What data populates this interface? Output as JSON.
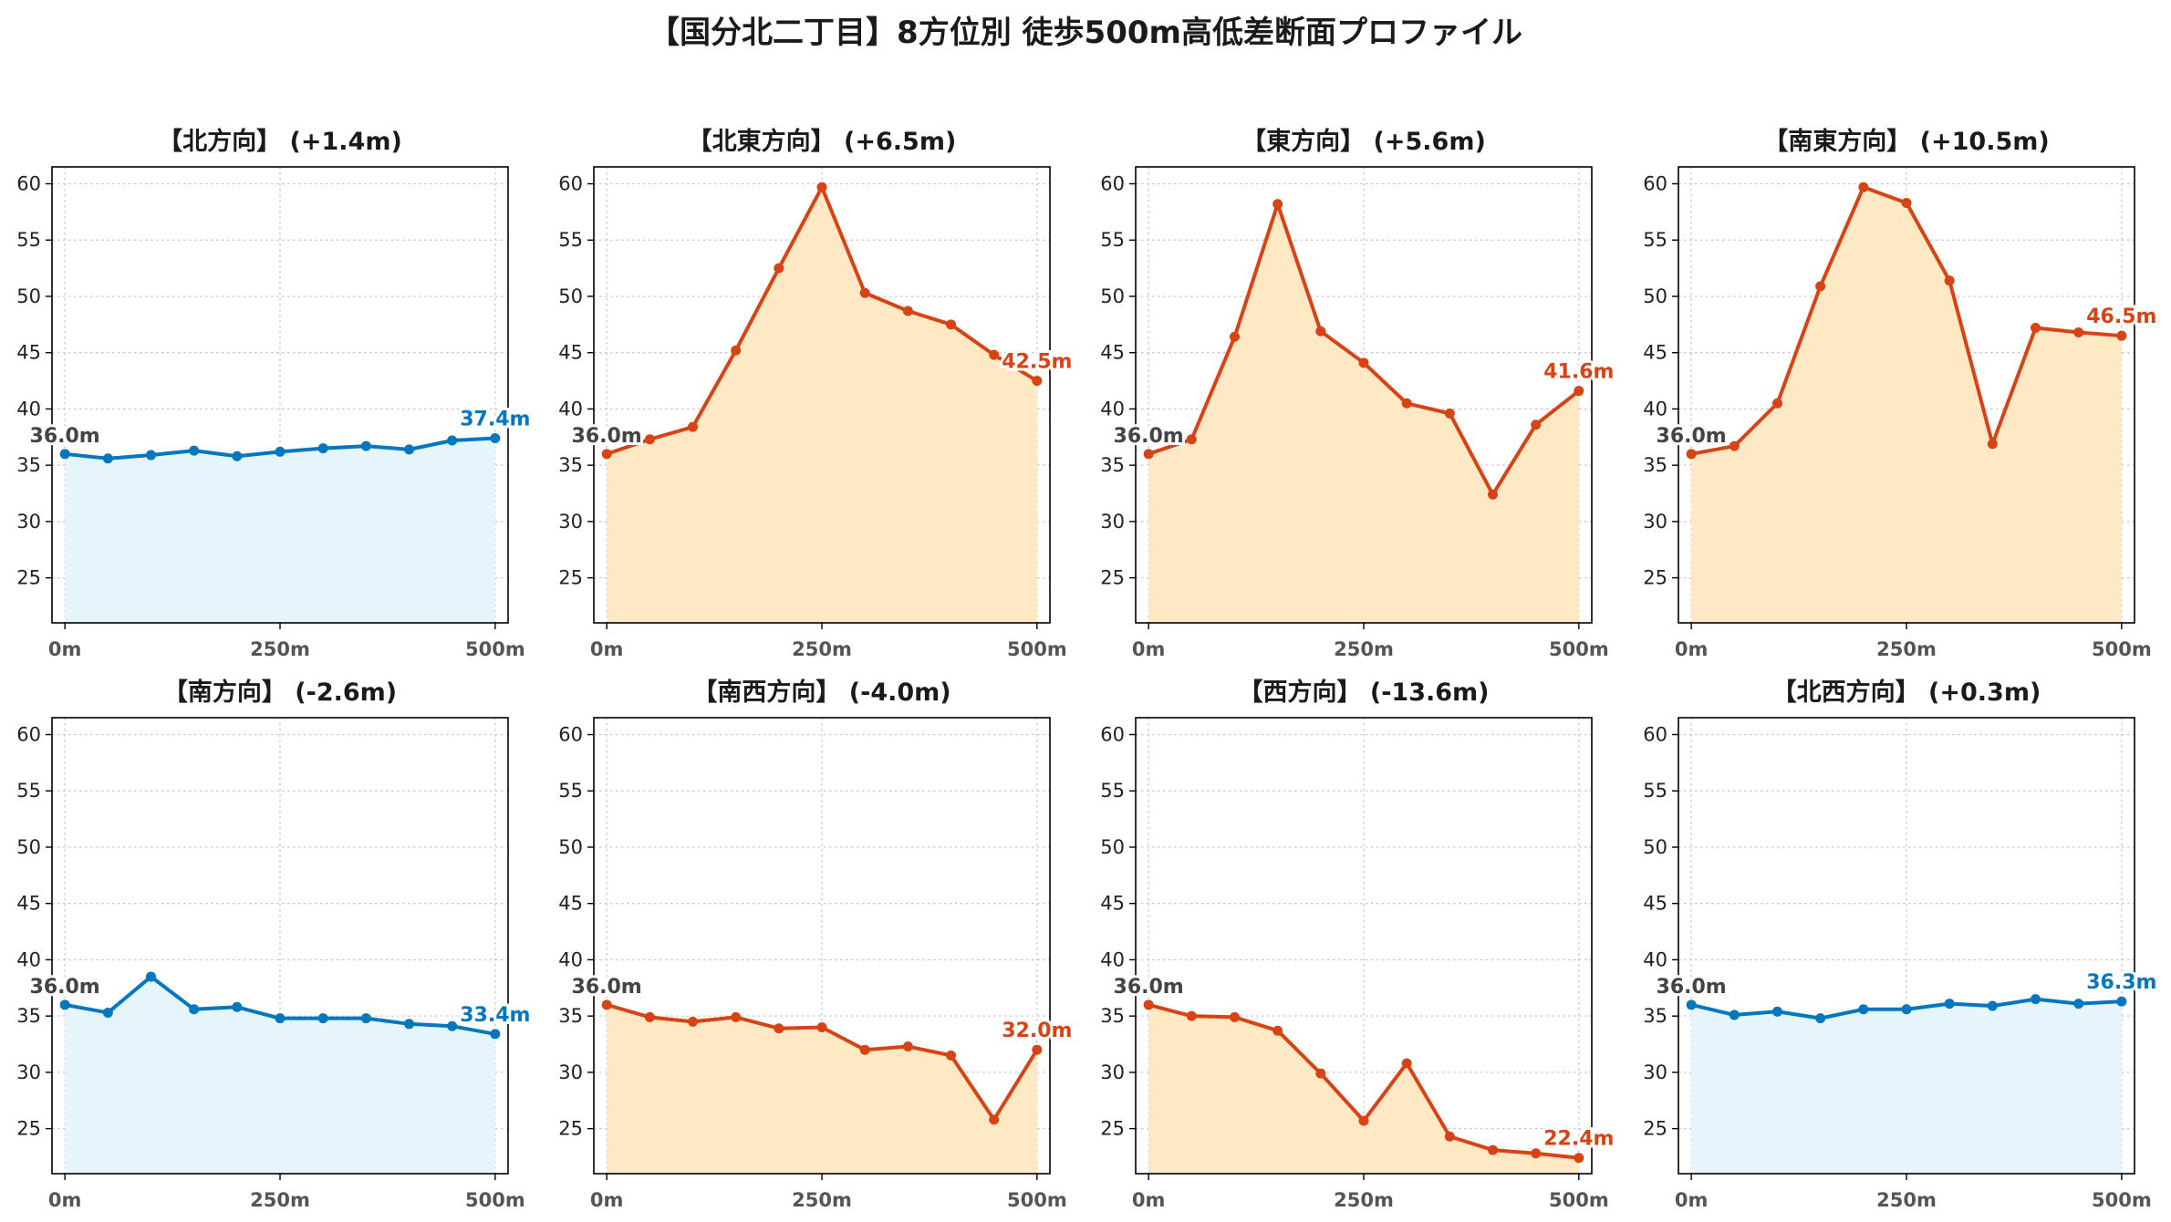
{
  "title": "【国分北二丁目】8方位別 徒歩500m高低差断面プロファイル",
  "colors": {
    "up": "#d84315",
    "down": "#0277bd",
    "fill_up": "#ffe8c4",
    "fill_down": "#e6f5fc",
    "start_label": "#444444"
  },
  "chart_data": [
    {
      "type": "area",
      "title": "【北方向】 (+1.4m)",
      "trend": "down",
      "x": [
        0,
        50,
        100,
        150,
        200,
        250,
        300,
        350,
        400,
        450,
        500
      ],
      "y": [
        36.0,
        35.6,
        35.9,
        36.3,
        35.8,
        36.2,
        36.5,
        36.7,
        36.4,
        37.2,
        37.4
      ],
      "start_label": "36.0m",
      "end_label": "37.4m",
      "xticks": [
        0,
        250,
        500
      ],
      "xtick_labels": [
        "0m",
        "250m",
        "500m"
      ],
      "yticks": [
        25,
        30,
        35,
        40,
        45,
        50,
        55,
        60
      ],
      "xlim": [
        -15,
        515
      ],
      "ylim": [
        21,
        61.5
      ],
      "grid": true
    },
    {
      "type": "area",
      "title": "【北東方向】 (+6.5m)",
      "trend": "up",
      "x": [
        0,
        50,
        100,
        150,
        200,
        250,
        300,
        350,
        400,
        450,
        500
      ],
      "y": [
        36.0,
        37.3,
        38.4,
        45.2,
        52.5,
        59.7,
        50.3,
        48.7,
        47.5,
        44.8,
        42.5
      ],
      "start_label": "36.0m",
      "end_label": "42.5m",
      "xticks": [
        0,
        250,
        500
      ],
      "xtick_labels": [
        "0m",
        "250m",
        "500m"
      ],
      "yticks": [
        25,
        30,
        35,
        40,
        45,
        50,
        55,
        60
      ],
      "xlim": [
        -15,
        515
      ],
      "ylim": [
        21,
        61.5
      ],
      "grid": true
    },
    {
      "type": "area",
      "title": "【東方向】 (+5.6m)",
      "trend": "up",
      "x": [
        0,
        50,
        100,
        150,
        200,
        250,
        300,
        350,
        400,
        450,
        500
      ],
      "y": [
        36.0,
        37.3,
        46.4,
        58.2,
        46.9,
        44.1,
        40.5,
        39.6,
        32.4,
        38.6,
        41.6
      ],
      "start_label": "36.0m",
      "end_label": "41.6m",
      "xticks": [
        0,
        250,
        500
      ],
      "xtick_labels": [
        "0m",
        "250m",
        "500m"
      ],
      "yticks": [
        25,
        30,
        35,
        40,
        45,
        50,
        55,
        60
      ],
      "xlim": [
        -15,
        515
      ],
      "ylim": [
        21,
        61.5
      ],
      "grid": true
    },
    {
      "type": "area",
      "title": "【南東方向】 (+10.5m)",
      "trend": "up",
      "x": [
        0,
        50,
        100,
        150,
        200,
        250,
        300,
        350,
        400,
        450,
        500
      ],
      "y": [
        36.0,
        36.7,
        40.5,
        50.9,
        59.7,
        58.3,
        51.4,
        36.9,
        47.2,
        46.8,
        46.5
      ],
      "start_label": "36.0m",
      "end_label": "46.5m",
      "xticks": [
        0,
        250,
        500
      ],
      "xtick_labels": [
        "0m",
        "250m",
        "500m"
      ],
      "yticks": [
        25,
        30,
        35,
        40,
        45,
        50,
        55,
        60
      ],
      "xlim": [
        -15,
        515
      ],
      "ylim": [
        21,
        61.5
      ],
      "grid": true
    },
    {
      "type": "area",
      "title": "【南方向】 (-2.6m)",
      "trend": "down",
      "x": [
        0,
        50,
        100,
        150,
        200,
        250,
        300,
        350,
        400,
        450,
        500
      ],
      "y": [
        36.0,
        35.3,
        38.5,
        35.6,
        35.8,
        34.8,
        34.8,
        34.8,
        34.3,
        34.1,
        33.4
      ],
      "start_label": "36.0m",
      "end_label": "33.4m",
      "xticks": [
        0,
        250,
        500
      ],
      "xtick_labels": [
        "0m",
        "250m",
        "500m"
      ],
      "yticks": [
        25,
        30,
        35,
        40,
        45,
        50,
        55,
        60
      ],
      "xlim": [
        -15,
        515
      ],
      "ylim": [
        21,
        61.5
      ],
      "grid": true
    },
    {
      "type": "area",
      "title": "【南西方向】 (-4.0m)",
      "trend": "up",
      "x": [
        0,
        50,
        100,
        150,
        200,
        250,
        300,
        350,
        400,
        450,
        500
      ],
      "y": [
        36.0,
        34.9,
        34.5,
        34.9,
        33.9,
        34.0,
        32.0,
        32.3,
        31.5,
        25.8,
        32.0
      ],
      "start_label": "36.0m",
      "end_label": "32.0m",
      "xticks": [
        0,
        250,
        500
      ],
      "xtick_labels": [
        "0m",
        "250m",
        "500m"
      ],
      "yticks": [
        25,
        30,
        35,
        40,
        45,
        50,
        55,
        60
      ],
      "xlim": [
        -15,
        515
      ],
      "ylim": [
        21,
        61.5
      ],
      "grid": true
    },
    {
      "type": "area",
      "title": "【西方向】 (-13.6m)",
      "trend": "up",
      "x": [
        0,
        50,
        100,
        150,
        200,
        250,
        300,
        350,
        400,
        450,
        500
      ],
      "y": [
        36.0,
        35.0,
        34.9,
        33.7,
        29.9,
        25.7,
        30.8,
        24.3,
        23.1,
        22.8,
        22.4
      ],
      "start_label": "36.0m",
      "end_label": "22.4m",
      "xticks": [
        0,
        250,
        500
      ],
      "xtick_labels": [
        "0m",
        "250m",
        "500m"
      ],
      "yticks": [
        25,
        30,
        35,
        40,
        45,
        50,
        55,
        60
      ],
      "xlim": [
        -15,
        515
      ],
      "ylim": [
        21,
        61.5
      ],
      "grid": true
    },
    {
      "type": "area",
      "title": "【北西方向】 (+0.3m)",
      "trend": "down",
      "x": [
        0,
        50,
        100,
        150,
        200,
        250,
        300,
        350,
        400,
        450,
        500
      ],
      "y": [
        36.0,
        35.1,
        35.4,
        34.8,
        35.6,
        35.6,
        36.1,
        35.9,
        36.5,
        36.1,
        36.3
      ],
      "start_label": "36.0m",
      "end_label": "36.3m",
      "xticks": [
        0,
        250,
        500
      ],
      "xtick_labels": [
        "0m",
        "250m",
        "500m"
      ],
      "yticks": [
        25,
        30,
        35,
        40,
        45,
        50,
        55,
        60
      ],
      "xlim": [
        -15,
        515
      ],
      "ylim": [
        21,
        61.5
      ],
      "grid": true
    }
  ]
}
